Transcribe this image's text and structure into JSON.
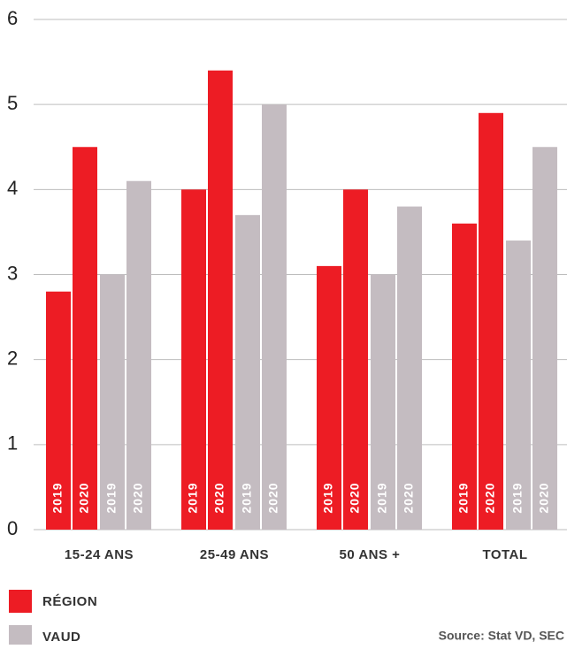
{
  "chart_data": {
    "type": "bar",
    "categories": [
      "15-24 ANS",
      "25-49 ANS",
      "50 ANS +",
      "TOTAL"
    ],
    "years": [
      "2019",
      "2020"
    ],
    "series": [
      {
        "name": "RÉGION",
        "color": "#ed1c24",
        "values": [
          [
            2.8,
            4.5
          ],
          [
            4.0,
            5.4
          ],
          [
            3.1,
            4.0
          ],
          [
            3.6,
            4.9
          ]
        ]
      },
      {
        "name": "VAUD",
        "color": "#c4bcc1",
        "values": [
          [
            3.0,
            4.1
          ],
          [
            3.7,
            5.0
          ],
          [
            3.0,
            3.8
          ],
          [
            3.4,
            4.5
          ]
        ]
      }
    ],
    "ylim": [
      0,
      6
    ],
    "yticks": [
      0,
      1,
      2,
      3,
      4,
      5,
      6
    ],
    "grid": true,
    "legend": "bottom-left",
    "source": "Source: Stat VD, SEC"
  }
}
